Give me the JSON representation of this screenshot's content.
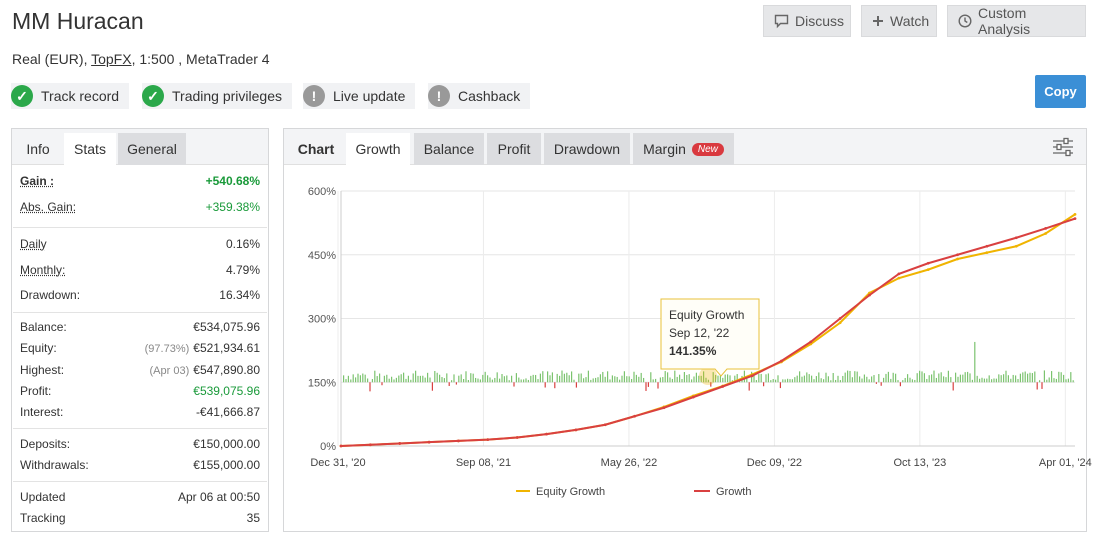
{
  "header": {
    "title": "MM Huracan",
    "account_type": "Real (EUR),",
    "broker": "TopFX",
    "rest": ", 1:500 , MetaTrader 4"
  },
  "actions": {
    "discuss": "Discuss",
    "watch": "Watch",
    "custom": "Custom Analysis",
    "copy": "Copy"
  },
  "badges": [
    {
      "label": "Track record",
      "icon": "check-icon",
      "status": "ok"
    },
    {
      "label": "Trading privileges",
      "icon": "check-icon",
      "status": "ok"
    },
    {
      "label": "Live update",
      "icon": "exclamation-icon",
      "status": "warn"
    },
    {
      "label": "Cashback",
      "icon": "exclamation-icon",
      "status": "warn"
    }
  ],
  "left_tabs": [
    "Info",
    "Stats",
    "General"
  ],
  "stats": {
    "gain": {
      "label": "Gain :",
      "value": "+540.68%"
    },
    "abs_gain": {
      "label": "Abs. Gain:",
      "value": "+359.38%"
    },
    "daily": {
      "label": "Daily",
      "value": "0.16%"
    },
    "monthly": {
      "label": "Monthly:",
      "value": "4.79%"
    },
    "drawdown": {
      "label": "Drawdown:",
      "value": "16.34%"
    },
    "balance": {
      "label": "Balance:",
      "value": "€534,075.96"
    },
    "equity": {
      "label": "Equity:",
      "pre": "(97.73%)",
      "value": "€521,934.61"
    },
    "highest": {
      "label": "Highest:",
      "pre": "(Apr 03)",
      "value": "€547,890.80"
    },
    "profit": {
      "label": "Profit:",
      "value": "€539,075.96"
    },
    "interest": {
      "label": "Interest:",
      "value": "-€41,666.87"
    },
    "deposits": {
      "label": "Deposits:",
      "value": "€150,000.00"
    },
    "withdrawals": {
      "label": "Withdrawals:",
      "value": "€155,000.00"
    },
    "updated": {
      "label": "Updated",
      "value": "Apr 06 at 00:50"
    },
    "tracking": {
      "label": "Tracking",
      "value": "35"
    }
  },
  "chart_tabs": {
    "chart": "Chart",
    "growth": "Growth",
    "balance": "Balance",
    "profit": "Profit",
    "drawdown": "Drawdown",
    "margin": "Margin",
    "new": "New"
  },
  "tooltip": {
    "title": "Equity Growth",
    "date": "Sep 12, '22",
    "value": "141.35%"
  },
  "chart_data": {
    "type": "line",
    "x_tick_labels": [
      "Dec 31, '20",
      "Sep 08, '21",
      "May 26, '22",
      "Dec 09, '22",
      "Oct 13, '23",
      "Apr 01, '24"
    ],
    "y_tick_labels": [
      "0%",
      "150%",
      "300%",
      "450%",
      "600%"
    ],
    "ylim": [
      0,
      600
    ],
    "grid": true,
    "legend_position": "bottom",
    "x_index": [
      0,
      10,
      20,
      30,
      40,
      50,
      60,
      70,
      80,
      90,
      100,
      110,
      120,
      130,
      140,
      150,
      160,
      170,
      180,
      190,
      200,
      210,
      220,
      230,
      240,
      250
    ],
    "series": [
      {
        "name": "Growth",
        "color": "#d94040",
        "values": [
          0,
          3,
          6,
          9,
          12,
          15,
          20,
          28,
          38,
          50,
          70,
          90,
          115,
          140,
          165,
          200,
          245,
          300,
          355,
          405,
          430,
          450,
          470,
          490,
          512,
          535
        ]
      },
      {
        "name": "Equity Growth",
        "color": "#f0b400",
        "values": [
          0,
          3,
          6,
          9,
          12,
          15,
          20,
          28,
          38,
          50,
          70,
          92,
          118,
          141,
          168,
          198,
          240,
          290,
          360,
          395,
          415,
          440,
          455,
          470,
          500,
          545
        ]
      }
    ]
  },
  "legend": {
    "equity": "Equity Growth",
    "growth": "Growth"
  },
  "colors": {
    "accent": "#3b8fd6",
    "positive": "#2ba84a",
    "negative": "#d94040",
    "equity": "#f0b400",
    "growth": "#d94040"
  }
}
